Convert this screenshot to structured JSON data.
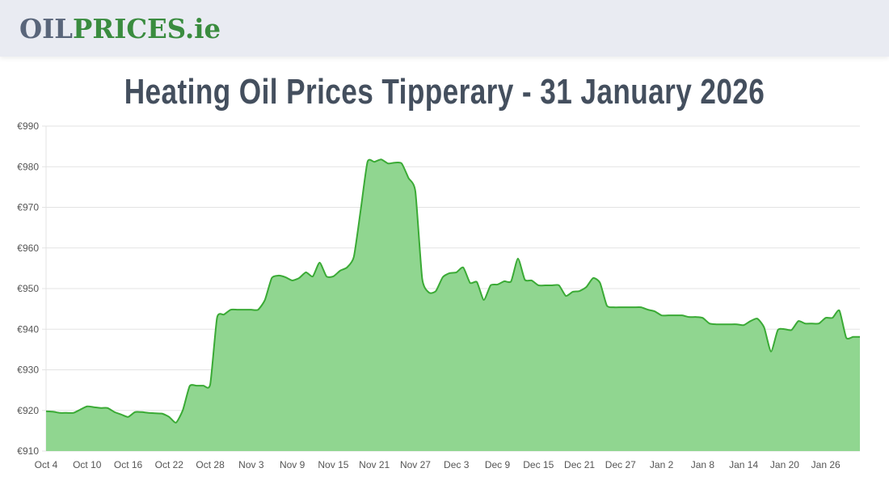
{
  "header": {
    "logo_part1": "OIL",
    "logo_part2": "PRICES.ie"
  },
  "page": {
    "title": "Heating Oil Prices Tipperary - 31 January 2026"
  },
  "colors": {
    "line": "#3aaa35",
    "fill": "#90d690",
    "grid": "#e3e3e3",
    "logo_grey": "#59657a",
    "logo_green": "#3a8c3f",
    "title": "#444f5e"
  },
  "chart_data": {
    "type": "area",
    "title": "Heating Oil Prices Tipperary - 31 January 2026",
    "xlabel": "",
    "ylabel": "",
    "ylim": [
      910,
      990
    ],
    "y_ticks": [
      "€990",
      "€980",
      "€970",
      "€960",
      "€950",
      "€940",
      "€930",
      "€920",
      "€910"
    ],
    "y_tick_values": [
      990,
      980,
      970,
      960,
      950,
      940,
      930,
      920,
      910
    ],
    "x_tick_labels": [
      "Oct 4",
      "Oct 10",
      "Oct 16",
      "Oct 22",
      "Oct 28",
      "Nov 3",
      "Nov 9",
      "Nov 15",
      "Nov 21",
      "Nov 27",
      "Dec 3",
      "Dec 9",
      "Dec 15",
      "Dec 21",
      "Dec 27",
      "Jan 2",
      "Jan 8",
      "Jan 14",
      "Jan 20",
      "Jan 26"
    ],
    "x_tick_interval_days": 6,
    "start_date": "Oct 4",
    "end_date": "Jan 31",
    "grid": true,
    "legend": "none",
    "series": [
      {
        "name": "Heating Oil Price (Tipperary)",
        "values": [
          919.8,
          919.7,
          919.4,
          919.4,
          919.4,
          920.2,
          921.0,
          920.8,
          920.6,
          920.6,
          919.6,
          919.0,
          918.4,
          919.6,
          919.6,
          919.4,
          919.3,
          919.2,
          918.4,
          917.0,
          920.1,
          926.0,
          926.1,
          926.1,
          926.4,
          942.8,
          943.6,
          944.8,
          944.8,
          944.8,
          944.8,
          944.8,
          947.2,
          952.6,
          953.2,
          952.8,
          952.0,
          952.6,
          954.0,
          953.0,
          956.4,
          953.0,
          953.0,
          954.4,
          955.2,
          957.8,
          969.3,
          981.2,
          981.2,
          981.8,
          980.8,
          981.0,
          980.8,
          977.2,
          973.9,
          952.4,
          949.0,
          949.4,
          952.8,
          953.8,
          954.0,
          955.2,
          951.4,
          951.6,
          947.2,
          950.8,
          951.0,
          951.8,
          951.8,
          957.4,
          952.2,
          952.0,
          950.8,
          950.8,
          950.8,
          950.8,
          948.2,
          949.2,
          949.4,
          950.4,
          952.6,
          951.4,
          945.8,
          945.4,
          945.4,
          945.4,
          945.4,
          945.4,
          944.8,
          944.4,
          943.4,
          943.4,
          943.4,
          943.4,
          943.0,
          943.0,
          942.8,
          941.4,
          941.2,
          941.2,
          941.2,
          941.2,
          941.0,
          942.0,
          942.6,
          940.4,
          934.5,
          939.8,
          940.0,
          939.8,
          942.0,
          941.4,
          941.4,
          941.4,
          942.8,
          942.8,
          944.6,
          937.9,
          938.1,
          938.1
        ]
      }
    ]
  }
}
